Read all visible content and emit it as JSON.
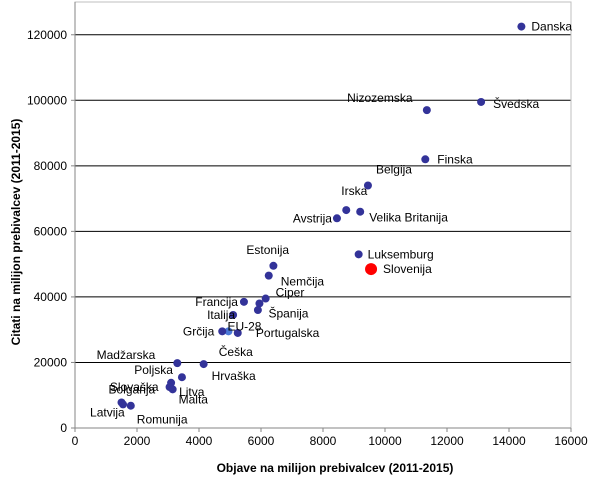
{
  "chart_data": {
    "type": "scatter",
    "xlabel": "Objave na milijon prebivalcev (2011-2015)",
    "ylabel": "Citati na milijon prebivalcev (2011-2015)",
    "xlim": [
      0,
      16000
    ],
    "ylim": [
      0,
      130000
    ],
    "xticks": [
      0,
      2000,
      4000,
      6000,
      8000,
      10000,
      12000,
      14000,
      16000
    ],
    "yticks": [
      0,
      20000,
      40000,
      60000,
      80000,
      100000,
      120000
    ],
    "grid": "horizontal",
    "colors": {
      "point": "#333399",
      "highlight": "#ff0000",
      "eu": "#4a78d8",
      "grid": "#000000"
    },
    "points": [
      {
        "name": "Danska",
        "x": 14400,
        "y": 122500,
        "label": "Danska"
      },
      {
        "name": "Švedska",
        "x": 13100,
        "y": 99500,
        "label": "Švedska"
      },
      {
        "name": "Nizozemska",
        "x": 11350,
        "y": 97000,
        "label": "Nizozemska"
      },
      {
        "name": "Finska",
        "x": 11300,
        "y": 82000,
        "label": "Finska"
      },
      {
        "name": "Belgija",
        "x": 9450,
        "y": 74000,
        "label": "Belgija"
      },
      {
        "name": "Irska",
        "x": 8750,
        "y": 66500,
        "label": "Irska"
      },
      {
        "name": "Velika Britanija",
        "x": 9200,
        "y": 66000,
        "label": "Velika Britanija"
      },
      {
        "name": "Avstrija",
        "x": 8450,
        "y": 64000,
        "label": "Avstrija"
      },
      {
        "name": "Luksemburg",
        "x": 9150,
        "y": 53000,
        "label": "Luksemburg"
      },
      {
        "name": "Slovenija",
        "x": 9550,
        "y": 48500,
        "label": "Slovenija",
        "highlight": true
      },
      {
        "name": "Estonija",
        "x": 6400,
        "y": 49500,
        "label": "Estonija"
      },
      {
        "name": "Nemčija",
        "x": 6250,
        "y": 46500,
        "label": "Nemčija"
      },
      {
        "name": "Ciper",
        "x": 6150,
        "y": 39500,
        "label": "Ciper"
      },
      {
        "name": "Francija",
        "x": 5450,
        "y": 38500,
        "label": "Francija"
      },
      {
        "name": "Španija",
        "x": 5950,
        "y": 38000,
        "label": "Španija"
      },
      {
        "name": "Portugalska",
        "x": 5900,
        "y": 36000,
        "label": "Portugalska"
      },
      {
        "name": "Italija",
        "x": 5100,
        "y": 34500,
        "label": "Italija"
      },
      {
        "name": "EU-28",
        "x": 4950,
        "y": 29500,
        "label": "EU-28",
        "eu": true
      },
      {
        "name": "Grčija",
        "x": 4750,
        "y": 29500,
        "label": "Grčija"
      },
      {
        "name": "Češka",
        "x": 5250,
        "y": 29000,
        "label": "Češka"
      },
      {
        "name": "Madžarska",
        "x": 3300,
        "y": 19800,
        "label": "Madžarska"
      },
      {
        "name": "Hrvaška",
        "x": 4150,
        "y": 19500,
        "label": "Hrvaška"
      },
      {
        "name": "Poljska",
        "x": 3450,
        "y": 15500,
        "label": "Poljska"
      },
      {
        "name": "Litva",
        "x": 3100,
        "y": 13800,
        "label": "Litva"
      },
      {
        "name": "Slovaška",
        "x": 3050,
        "y": 12500,
        "label": "Slovaška"
      },
      {
        "name": "Malta",
        "x": 3150,
        "y": 11800,
        "label": "Malta"
      },
      {
        "name": "Bolgarija",
        "x": 1500,
        "y": 7800,
        "label": "Bolgarija"
      },
      {
        "name": "Latvija",
        "x": 1550,
        "y": 7200,
        "label": "Latvija"
      },
      {
        "name": "Romunija",
        "x": 1800,
        "y": 6800,
        "label": "Romunija"
      }
    ]
  }
}
